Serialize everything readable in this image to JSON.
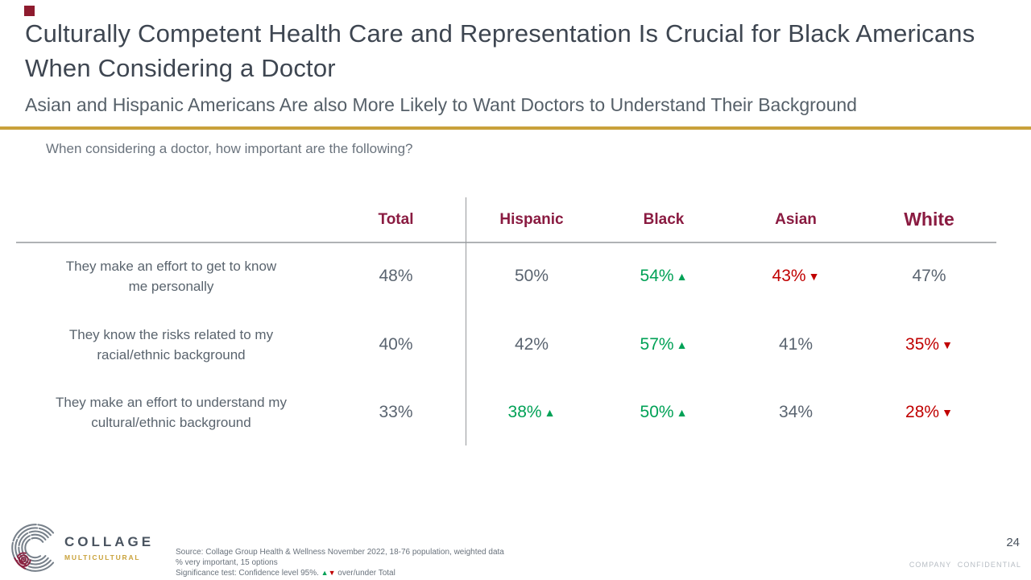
{
  "slide": {
    "title": "Culturally Competent Health Care and Representation Is Crucial for Black Americans When Considering a Doctor",
    "subtitle": "Asian and Hispanic Americans Are also More Likely to Want Doctors to Understand Their Background",
    "question": "When considering a doctor, how important are the following?"
  },
  "chart_data": {
    "type": "table",
    "columns": [
      "Total",
      "Hispanic",
      "Black",
      "Asian",
      "White"
    ],
    "rows": [
      {
        "label": "They make an effort to get to know\nme personally",
        "values": [
          {
            "v": "48%",
            "sig": null
          },
          {
            "v": "50%",
            "sig": null
          },
          {
            "v": "54%",
            "sig": "up"
          },
          {
            "v": "43%",
            "sig": "down"
          },
          {
            "v": "47%",
            "sig": null
          }
        ]
      },
      {
        "label": "They know the risks related to my\nracial/ethnic background",
        "values": [
          {
            "v": "40%",
            "sig": null
          },
          {
            "v": "42%",
            "sig": null
          },
          {
            "v": "57%",
            "sig": "up"
          },
          {
            "v": "41%",
            "sig": null
          },
          {
            "v": "35%",
            "sig": "down"
          }
        ]
      },
      {
        "label": "They make an effort to understand my\ncultural/ethnic background",
        "values": [
          {
            "v": "33%",
            "sig": null
          },
          {
            "v": "38%",
            "sig": "up"
          },
          {
            "v": "50%",
            "sig": "up"
          },
          {
            "v": "34%",
            "sig": null
          },
          {
            "v": "28%",
            "sig": "down"
          }
        ]
      }
    ],
    "title": "When considering a doctor, how important are the following?",
    "notes": "Values are % very important; green up-triangle = significantly over Total, red down-triangle = significantly under Total"
  },
  "glyphs": {
    "up": "▲",
    "down": "▼"
  },
  "footer": {
    "logo_name": "COLLAGE",
    "logo_tagline": "MULTICULTURAL",
    "source_line1": "Source: Collage Group Health & Wellness November 2022, 18-76 population, weighted data",
    "source_line2": "% very important, 15 options",
    "sig_before": "Significance test: Confidence level 95%.",
    "sig_after": "over/under Total",
    "page_number": "24",
    "confidential": "COMPANY CONFIDENTIAL"
  },
  "colors": {
    "accent_gold": "#C9A13B",
    "header_maroon": "#8A1B41",
    "sig_green": "#00A156",
    "sig_red": "#C00000",
    "title_slate": "#3E4651"
  }
}
